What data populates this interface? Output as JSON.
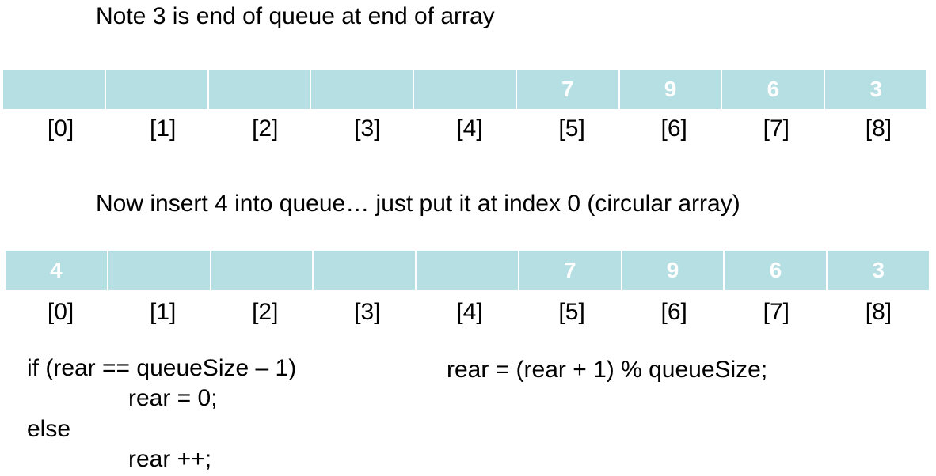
{
  "heading_1": "Note 3 is end of queue at end of array",
  "array_1": {
    "cells": [
      "",
      "",
      "",
      "",
      "",
      "7",
      "9",
      "6",
      "3"
    ],
    "indices": [
      "[0]",
      "[1]",
      "[2]",
      "[3]",
      "[4]",
      "[5]",
      "[6]",
      "[7]",
      "[8]"
    ]
  },
  "heading_2": "Now insert 4 into queue… just put it at index 0 (circular array)",
  "array_2": {
    "cells": [
      "4",
      "",
      "",
      "",
      "",
      "7",
      "9",
      "6",
      "3"
    ],
    "indices": [
      "[0]",
      "[1]",
      "[2]",
      "[3]",
      "[4]",
      "[5]",
      "[6]",
      "[7]",
      "[8]"
    ]
  },
  "code_if": {
    "line_1": "if (rear == queueSize – 1)",
    "line_2": "rear = 0;",
    "line_3": "else",
    "line_4": "rear ++;"
  },
  "code_mod": "rear = (rear + 1) % queueSize;",
  "colors": {
    "cell_fill": "#b6dfe3",
    "cell_text": "#ffffff",
    "text": "#000000"
  }
}
